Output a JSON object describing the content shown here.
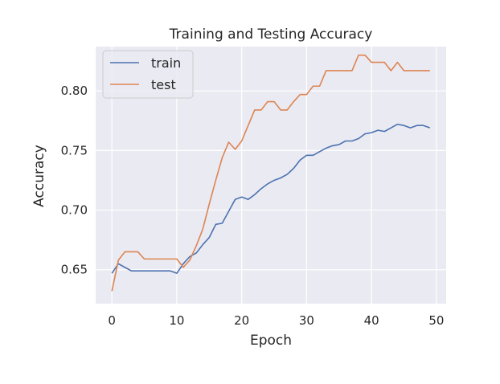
{
  "chart_data": {
    "type": "line",
    "title": "Training and Testing Accuracy",
    "xlabel": "Epoch",
    "ylabel": "Accuracy",
    "xlim": [
      -2.5,
      51.5
    ],
    "ylim": [
      0.6215,
      0.8372
    ],
    "xticks": [
      0,
      10,
      20,
      30,
      40,
      50
    ],
    "xtick_labels": [
      "0",
      "10",
      "20",
      "30",
      "40",
      "50"
    ],
    "yticks": [
      0.65,
      0.7,
      0.75,
      0.8
    ],
    "ytick_labels": [
      "0.65",
      "0.70",
      "0.75",
      "0.80"
    ],
    "grid": true,
    "legend_position": "top-left",
    "x": [
      0,
      1,
      2,
      3,
      4,
      5,
      6,
      7,
      8,
      9,
      10,
      11,
      12,
      13,
      14,
      15,
      16,
      17,
      18,
      19,
      20,
      21,
      22,
      23,
      24,
      25,
      26,
      27,
      28,
      29,
      30,
      31,
      32,
      33,
      34,
      35,
      36,
      37,
      38,
      39,
      40,
      41,
      42,
      43,
      44,
      45,
      46,
      47,
      48,
      49
    ],
    "series": [
      {
        "name": "train",
        "color": "#4c72b0",
        "values": [
          0.647,
          0.655,
          0.652,
          0.649,
          0.649,
          0.649,
          0.649,
          0.649,
          0.649,
          0.649,
          0.647,
          0.655,
          0.661,
          0.664,
          0.671,
          0.677,
          0.688,
          0.689,
          0.699,
          0.709,
          0.711,
          0.709,
          0.713,
          0.718,
          0.722,
          0.725,
          0.727,
          0.73,
          0.735,
          0.742,
          0.746,
          0.746,
          0.749,
          0.752,
          0.754,
          0.755,
          0.758,
          0.758,
          0.76,
          0.764,
          0.765,
          0.767,
          0.766,
          0.769,
          0.772,
          0.771,
          0.769,
          0.771,
          0.771,
          0.769
        ]
      },
      {
        "name": "test",
        "color": "#dd8452",
        "values": [
          0.632,
          0.658,
          0.665,
          0.665,
          0.665,
          0.659,
          0.659,
          0.659,
          0.659,
          0.659,
          0.659,
          0.652,
          0.658,
          0.67,
          0.684,
          0.705,
          0.725,
          0.744,
          0.757,
          0.751,
          0.758,
          0.771,
          0.784,
          0.784,
          0.791,
          0.791,
          0.784,
          0.784,
          0.791,
          0.797,
          0.797,
          0.804,
          0.804,
          0.817,
          0.817,
          0.817,
          0.817,
          0.817,
          0.83,
          0.83,
          0.824,
          0.824,
          0.824,
          0.817,
          0.824,
          0.817,
          0.817,
          0.817,
          0.817,
          0.817
        ]
      }
    ]
  }
}
